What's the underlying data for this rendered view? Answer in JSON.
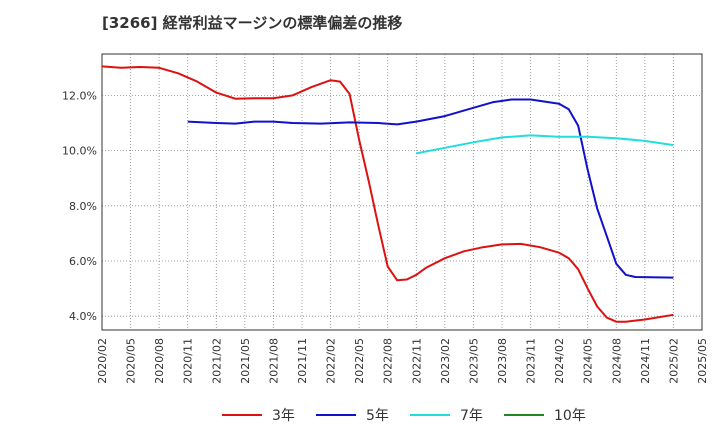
{
  "title": "[3266]  経常利益マージンの標準偏差の推移",
  "chart_data": {
    "type": "line",
    "x": [
      "2020/02",
      "2020/05",
      "2020/08",
      "2020/11",
      "2021/02",
      "2021/05",
      "2021/08",
      "2021/11",
      "2022/02",
      "2022/05",
      "2022/08",
      "2022/11",
      "2023/02",
      "2023/05",
      "2023/08",
      "2023/11",
      "2024/02",
      "2024/05",
      "2024/08",
      "2024/11",
      "2025/02",
      "2025/05"
    ],
    "xlim": [
      "2020/02",
      "2025/05"
    ],
    "ylim": [
      3.5,
      13.5
    ],
    "y_ticks": [
      4.0,
      6.0,
      8.0,
      10.0,
      12.0
    ],
    "y_tick_labels": [
      "4.0%",
      "6.0%",
      "8.0%",
      "10.0%",
      "12.0%"
    ],
    "grid": true,
    "legend_position": "bottom",
    "series": [
      {
        "name": "3年",
        "color": "#dd1111",
        "points": [
          [
            "2020/02",
            13.05
          ],
          [
            "2020/04",
            13.0
          ],
          [
            "2020/06",
            13.03
          ],
          [
            "2020/08",
            13.0
          ],
          [
            "2020/10",
            12.8
          ],
          [
            "2020/12",
            12.5
          ],
          [
            "2021/02",
            12.1
          ],
          [
            "2021/04",
            11.88
          ],
          [
            "2021/06",
            11.9
          ],
          [
            "2021/08",
            11.9
          ],
          [
            "2021/10",
            12.0
          ],
          [
            "2021/12",
            12.3
          ],
          [
            "2022/02",
            12.55
          ],
          [
            "2022/03",
            12.5
          ],
          [
            "2022/04",
            12.05
          ],
          [
            "2022/05",
            10.4
          ],
          [
            "2022/06",
            8.9
          ],
          [
            "2022/07",
            7.3
          ],
          [
            "2022/08",
            5.8
          ],
          [
            "2022/09",
            5.3
          ],
          [
            "2022/10",
            5.33
          ],
          [
            "2022/11",
            5.5
          ],
          [
            "2022/12",
            5.75
          ],
          [
            "2023/02",
            6.1
          ],
          [
            "2023/04",
            6.35
          ],
          [
            "2023/06",
            6.5
          ],
          [
            "2023/08",
            6.6
          ],
          [
            "2023/10",
            6.62
          ],
          [
            "2023/12",
            6.5
          ],
          [
            "2024/02",
            6.3
          ],
          [
            "2024/03",
            6.1
          ],
          [
            "2024/04",
            5.7
          ],
          [
            "2024/05",
            5.0
          ],
          [
            "2024/06",
            4.35
          ],
          [
            "2024/07",
            3.95
          ],
          [
            "2024/08",
            3.8
          ],
          [
            "2024/09",
            3.8
          ],
          [
            "2024/11",
            3.88
          ],
          [
            "2025/02",
            4.05
          ]
        ]
      },
      {
        "name": "5年",
        "color": "#1111cc",
        "points": [
          [
            "2020/11",
            11.05
          ],
          [
            "2021/02",
            11.0
          ],
          [
            "2021/04",
            10.98
          ],
          [
            "2021/06",
            11.05
          ],
          [
            "2021/08",
            11.05
          ],
          [
            "2021/10",
            11.0
          ],
          [
            "2022/01",
            10.98
          ],
          [
            "2022/04",
            11.02
          ],
          [
            "2022/07",
            11.0
          ],
          [
            "2022/09",
            10.95
          ],
          [
            "2022/11",
            11.05
          ],
          [
            "2023/02",
            11.25
          ],
          [
            "2023/05",
            11.55
          ],
          [
            "2023/07",
            11.75
          ],
          [
            "2023/09",
            11.85
          ],
          [
            "2023/11",
            11.85
          ],
          [
            "2024/02",
            11.7
          ],
          [
            "2024/03",
            11.5
          ],
          [
            "2024/04",
            10.9
          ],
          [
            "2024/05",
            9.3
          ],
          [
            "2024/06",
            7.9
          ],
          [
            "2024/07",
            6.9
          ],
          [
            "2024/08",
            5.9
          ],
          [
            "2024/09",
            5.5
          ],
          [
            "2024/10",
            5.42
          ],
          [
            "2025/02",
            5.4
          ]
        ]
      },
      {
        "name": "7年",
        "color": "#22dddd",
        "points": [
          [
            "2022/11",
            9.9
          ],
          [
            "2023/02",
            10.1
          ],
          [
            "2023/05",
            10.3
          ],
          [
            "2023/08",
            10.48
          ],
          [
            "2023/11",
            10.55
          ],
          [
            "2024/02",
            10.5
          ],
          [
            "2024/05",
            10.5
          ],
          [
            "2024/08",
            10.45
          ],
          [
            "2024/11",
            10.35
          ],
          [
            "2025/02",
            10.2
          ]
        ]
      },
      {
        "name": "10年",
        "color": "#228822",
        "points": []
      }
    ]
  }
}
